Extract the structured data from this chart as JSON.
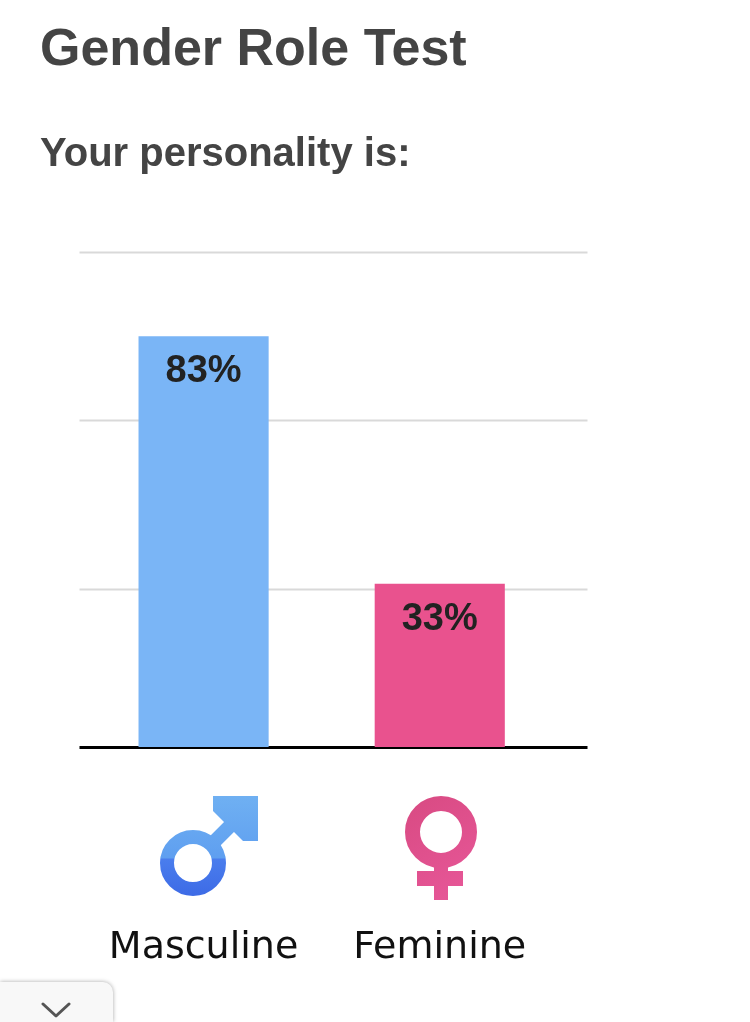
{
  "chart_data": {
    "type": "bar",
    "title": "Gender Role Test",
    "subtitle": "Your personality is:",
    "categories": [
      "Masculine",
      "Feminine"
    ],
    "values": [
      83,
      33
    ],
    "colors": [
      "#7ab5f6",
      "#e9528e"
    ],
    "value_labels": [
      "83%",
      "33%"
    ],
    "ylim": [
      0,
      100
    ],
    "yticks": [
      {
        "value": 32,
        "label": null
      },
      {
        "value": 66,
        "label": null
      },
      {
        "value": 100,
        "label": null
      }
    ],
    "grid": "y",
    "tick_labels": "x"
  }
}
